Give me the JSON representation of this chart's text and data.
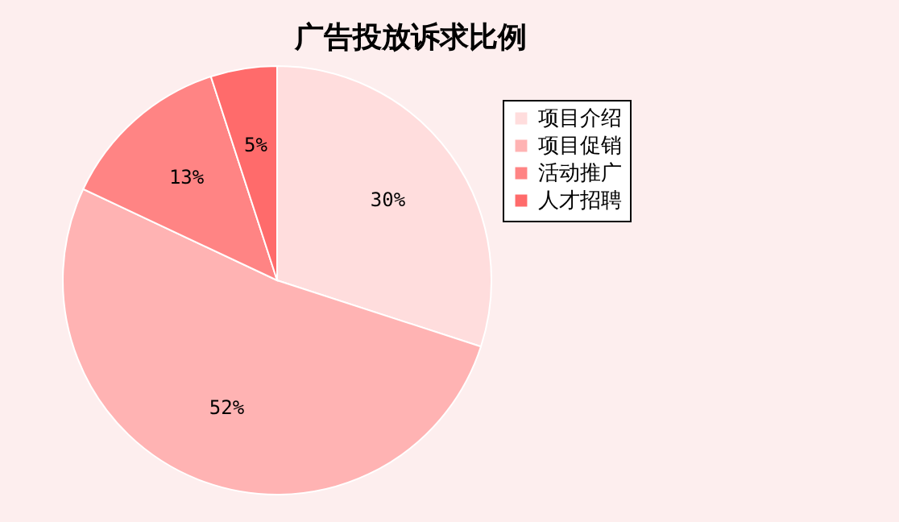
{
  "chart_data": {
    "type": "pie",
    "title": "广告投放诉求比例",
    "categories": [
      "项目介绍",
      "项目促销",
      "活动推广",
      "人才招聘"
    ],
    "values": [
      30,
      52,
      13,
      5
    ],
    "value_labels": [
      "30%",
      "52%",
      "13%",
      "5%"
    ],
    "colors": [
      "#ffdddd",
      "#ffb3b3",
      "#ff8484",
      "#ff6b6b"
    ],
    "legend": "right"
  }
}
